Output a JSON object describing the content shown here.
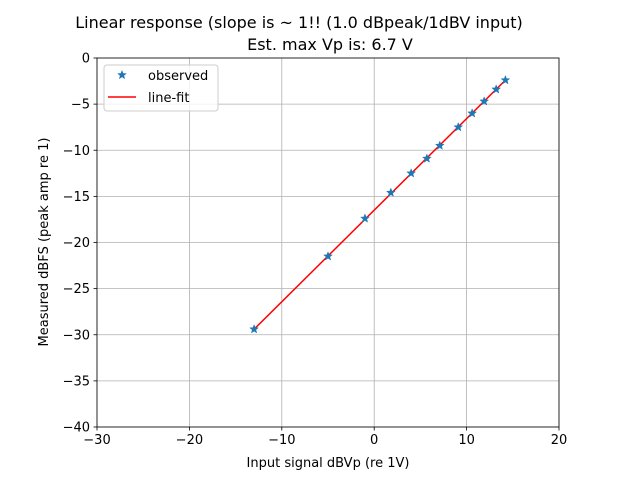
{
  "chart_data": {
    "type": "scatter",
    "title": "Linear response (slope is ~ 1!! (1.0 dBpeak/1dBV input)",
    "subtitle": "Est. max Vp is: 6.7 V",
    "xlabel": "Input signal dBVp (re 1V)",
    "ylabel": "Measured dBFS (peak amp re 1)",
    "xlim": [
      -30,
      20
    ],
    "ylim": [
      -40,
      0
    ],
    "xticks": [
      -30,
      -20,
      -10,
      0,
      10,
      20
    ],
    "yticks": [
      0,
      -5,
      -10,
      -15,
      -20,
      -25,
      -30,
      -35,
      -40
    ],
    "xtick_labels": [
      "−30",
      "−20",
      "−10",
      "0",
      "10",
      "20"
    ],
    "ytick_labels": [
      "0",
      "−5",
      "−10",
      "−15",
      "−20",
      "−25",
      "−30",
      "−35",
      "−40"
    ],
    "grid": true,
    "legend_position": "upper-left",
    "series": [
      {
        "name": "observed",
        "type": "scatter",
        "marker": "star",
        "color": "#1f77b4",
        "points": [
          {
            "x": -13.0,
            "y": -29.4
          },
          {
            "x": -5.0,
            "y": -21.5
          },
          {
            "x": -1.0,
            "y": -17.4
          },
          {
            "x": 1.8,
            "y": -14.6
          },
          {
            "x": 4.0,
            "y": -12.5
          },
          {
            "x": 5.7,
            "y": -10.9
          },
          {
            "x": 7.1,
            "y": -9.5
          },
          {
            "x": 9.1,
            "y": -7.5
          },
          {
            "x": 10.6,
            "y": -6.0
          },
          {
            "x": 11.9,
            "y": -4.7
          },
          {
            "x": 13.2,
            "y": -3.4
          },
          {
            "x": 14.2,
            "y": -2.4
          }
        ]
      },
      {
        "name": "line-fit",
        "type": "line",
        "color": "#ff0000",
        "points": [
          {
            "x": -13.0,
            "y": -29.4
          },
          {
            "x": 14.2,
            "y": -2.4
          }
        ]
      }
    ]
  }
}
